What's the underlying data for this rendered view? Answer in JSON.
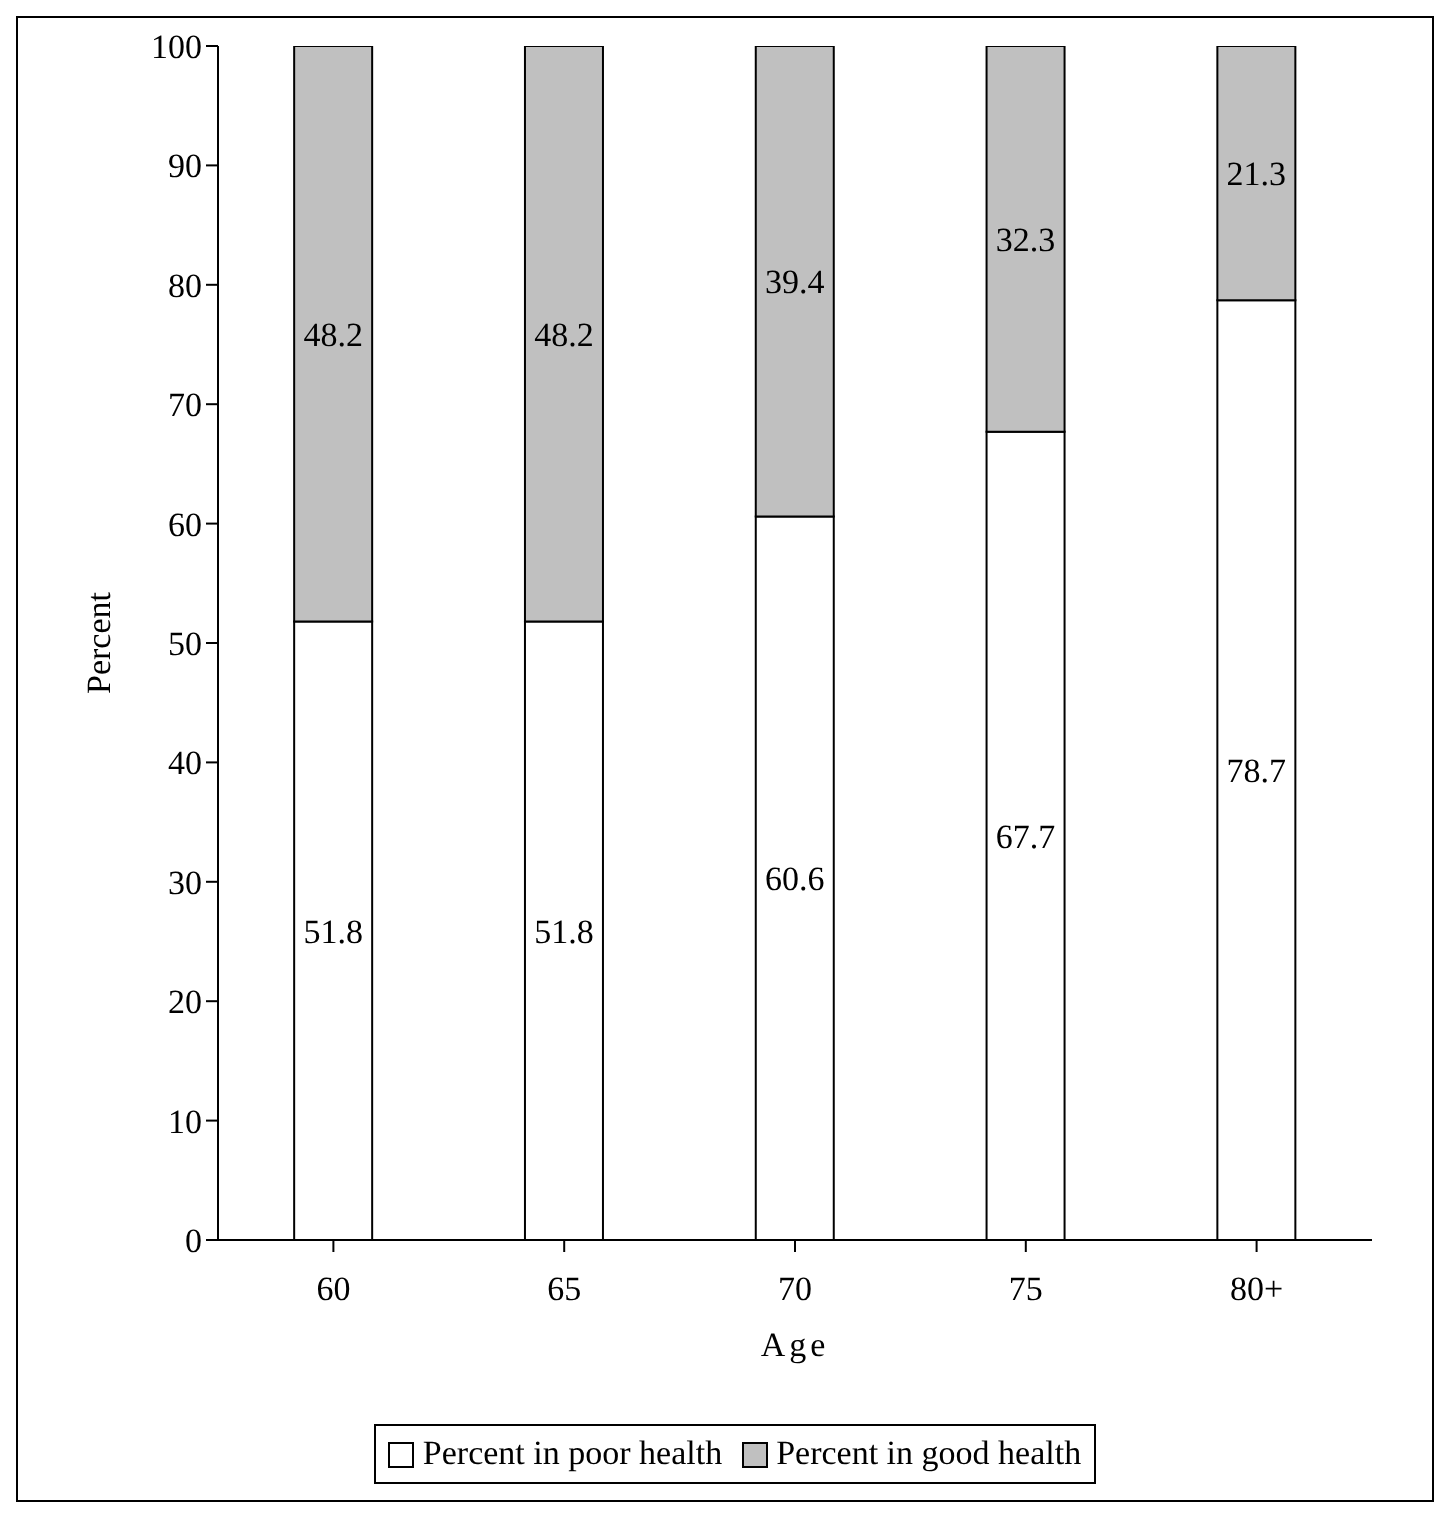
{
  "chart_data": {
    "type": "bar",
    "xlabel": "Age",
    "ylabel": "Percent",
    "categories": [
      "60",
      "65",
      "70",
      "75",
      "80+"
    ],
    "stacked": true,
    "series": [
      {
        "name": "Percent in poor health",
        "color": "#ffffff",
        "values": [
          51.8,
          51.8,
          60.6,
          67.7,
          78.7
        ]
      },
      {
        "name": "Percent in good health",
        "color": "#c0c0c0",
        "values": [
          48.2,
          48.2,
          39.4,
          32.3,
          21.3
        ]
      }
    ],
    "ylim": [
      0,
      100
    ],
    "yticks": [
      0,
      10,
      20,
      30,
      40,
      50,
      60,
      70,
      80,
      90,
      100
    ],
    "data_labels": true,
    "grid": false,
    "legend": "bottom"
  }
}
